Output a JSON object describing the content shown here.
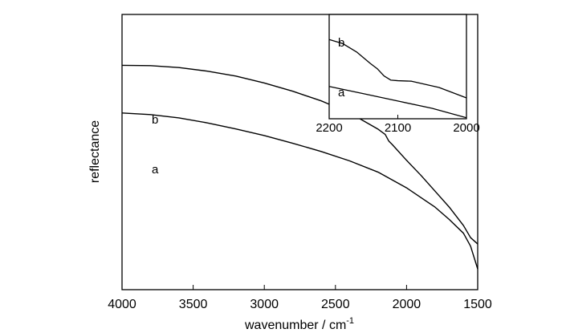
{
  "chart_data": [
    {
      "type": "line",
      "xlabel": "wavenumber / cm",
      "xlabel_superscript": "-1",
      "ylabel": "reflectance",
      "xlim": [
        4000,
        1500
      ],
      "x_reversed": true,
      "x_ticks": [
        "4000",
        "3500",
        "3000",
        "2500",
        "2000",
        "1500"
      ],
      "y_ticks": [],
      "ylim": [
        0,
        1
      ],
      "grid": false,
      "legend": "none",
      "series": [
        {
          "name": "b",
          "x": [
            4000,
            3800,
            3600,
            3400,
            3200,
            3000,
            2800,
            2600,
            2400,
            2200,
            2150,
            2125,
            2100,
            2000,
            1900,
            1800,
            1700,
            1600,
            1550,
            1500
          ],
          "y": [
            0.815,
            0.814,
            0.807,
            0.794,
            0.776,
            0.751,
            0.721,
            0.686,
            0.642,
            0.583,
            0.564,
            0.54,
            0.527,
            0.47,
            0.416,
            0.358,
            0.3,
            0.233,
            0.189,
            0.166
          ]
        },
        {
          "name": "a",
          "x": [
            4000,
            3800,
            3600,
            3400,
            3200,
            3000,
            2800,
            2600,
            2400,
            2200,
            2000,
            1800,
            1700,
            1600,
            1550,
            1500
          ],
          "y": [
            0.642,
            0.636,
            0.624,
            0.606,
            0.584,
            0.56,
            0.532,
            0.502,
            0.468,
            0.427,
            0.37,
            0.3,
            0.255,
            0.205,
            0.158,
            0.075
          ]
        }
      ]
    },
    {
      "type": "line",
      "inset": true,
      "xlim": [
        2200,
        2000
      ],
      "x_reversed": true,
      "x_ticks": [
        "2200",
        "2100",
        "2000"
      ],
      "y_ticks": [],
      "ylim": [
        0,
        1
      ],
      "series": [
        {
          "name": "b",
          "x": [
            2200,
            2180,
            2160,
            2140,
            2130,
            2120,
            2110,
            2100,
            2080,
            2060,
            2040,
            2020,
            2000
          ],
          "y": [
            0.76,
            0.72,
            0.64,
            0.53,
            0.48,
            0.41,
            0.37,
            0.365,
            0.36,
            0.33,
            0.3,
            0.25,
            0.2
          ]
        },
        {
          "name": "a",
          "x": [
            2200,
            2150,
            2100,
            2050,
            2000
          ],
          "y": [
            0.31,
            0.24,
            0.17,
            0.1,
            0.01
          ]
        }
      ]
    }
  ]
}
